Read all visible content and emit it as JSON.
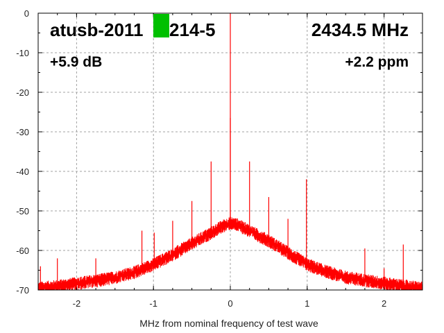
{
  "chart_data": {
    "type": "line",
    "xlabel": "MHz from nominal frequency of test wave",
    "ylabel": "",
    "xlim": [
      -2.5,
      2.5
    ],
    "ylim": [
      -70,
      0
    ],
    "x_ticks": [
      -2,
      -1,
      0,
      1,
      2
    ],
    "y_ticks": [
      0,
      -10,
      -20,
      -30,
      -40,
      -50,
      -60,
      -70
    ],
    "grid": true,
    "series_color": "#ff0000",
    "marker_color": "#00c000",
    "annotations": {
      "device": "atusb-2011",
      "device_suffix": "214-5",
      "frequency": "2434.5 MHz",
      "gain": "+5.9 dB",
      "offset": "+2.2 ppm"
    },
    "noise_floor": {
      "x": [
        -2.5,
        -2.25,
        -2.0,
        -1.75,
        -1.5,
        -1.25,
        -1.0,
        -0.75,
        -0.5,
        -0.25,
        -0.1,
        0.0,
        0.1,
        0.25,
        0.5,
        0.75,
        1.0,
        1.25,
        1.5,
        1.75,
        2.0,
        2.25,
        2.5
      ],
      "y": [
        -69.5,
        -69.0,
        -68.3,
        -67.6,
        -66.8,
        -65.5,
        -63.5,
        -61.0,
        -58.2,
        -55.5,
        -53.8,
        -53.0,
        -53.5,
        -55.0,
        -57.5,
        -60.5,
        -63.5,
        -65.3,
        -66.7,
        -67.5,
        -68.2,
        -68.9,
        -69.5
      ]
    },
    "spurs": [
      {
        "x": -2.47,
        "y": -64.0
      },
      {
        "x": -2.25,
        "y": -62.0
      },
      {
        "x": -1.75,
        "y": -62.0
      },
      {
        "x": -1.15,
        "y": -55.0
      },
      {
        "x": -0.99,
        "y": -55.5
      },
      {
        "x": -0.75,
        "y": -52.5
      },
      {
        "x": -0.5,
        "y": -47.5
      },
      {
        "x": -0.25,
        "y": -37.5
      },
      {
        "x": 0.0,
        "y": 0.0
      },
      {
        "x": 0.0,
        "y": -26.5
      },
      {
        "x": 0.25,
        "y": -37.5
      },
      {
        "x": 0.5,
        "y": -46.5
      },
      {
        "x": 0.75,
        "y": -52.0
      },
      {
        "x": 0.99,
        "y": -42.0
      },
      {
        "x": 1.75,
        "y": -59.5
      },
      {
        "x": 2.0,
        "y": -64.5
      },
      {
        "x": 2.25,
        "y": -58.5
      }
    ]
  }
}
